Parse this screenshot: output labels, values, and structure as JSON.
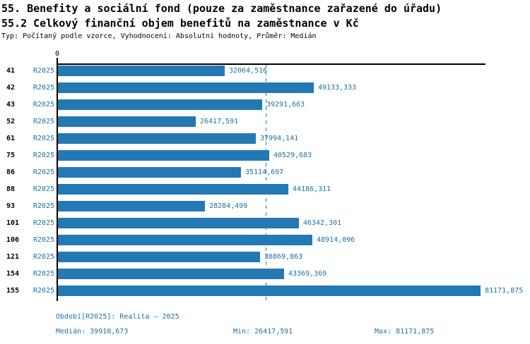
{
  "colors": {
    "bar": "#2478b4",
    "accent_text": "#1d6fa5",
    "axis": "#000000"
  },
  "header": {
    "title": "55. Benefity a sociální fond (pouze za zaměstnance zařazené do úřadu)",
    "subtitle": "55.2 Celkový finanční objem benefitů na zaměstnance v Kč",
    "meta": "Typ: Počítaný podle vzorce, Vyhodnocení: Absolutní hodnoty, Průměr: Medián"
  },
  "axis": {
    "zero_label": "0"
  },
  "chart_data": {
    "type": "bar",
    "orientation": "horizontal",
    "title": "55.2 Celkový finanční objem benefitů na zaměstnance v Kč",
    "categories": [
      "41",
      "42",
      "43",
      "52",
      "61",
      "75",
      "86",
      "88",
      "93",
      "101",
      "106",
      "121",
      "154",
      "155"
    ],
    "series_label": "R2025",
    "values": [
      32064.516,
      49133.333,
      39291.663,
      26417.591,
      37994.141,
      40529.683,
      35114.697,
      44186.311,
      28284.499,
      46342.301,
      48914.096,
      38869.863,
      43369.369,
      81171.875
    ],
    "value_labels": [
      "32064,516",
      "49133,333",
      "39291,663",
      "26417,591",
      "37994,141",
      "40529,683",
      "35114,697",
      "44186,311",
      "28284,499",
      "46342,301",
      "48914,096",
      "38869,863",
      "43369,369",
      "81171,875"
    ],
    "xlim": [
      0,
      81171.875
    ],
    "grid": false,
    "legend": "none",
    "median_line": {
      "value": 39910.673,
      "style": "dashed"
    }
  },
  "footer": {
    "period": "Období[R2025]: Realita – 2025",
    "median": "Medián: 39910,673",
    "min": "Min: 26417,591",
    "max": "Max: 81171,875"
  }
}
